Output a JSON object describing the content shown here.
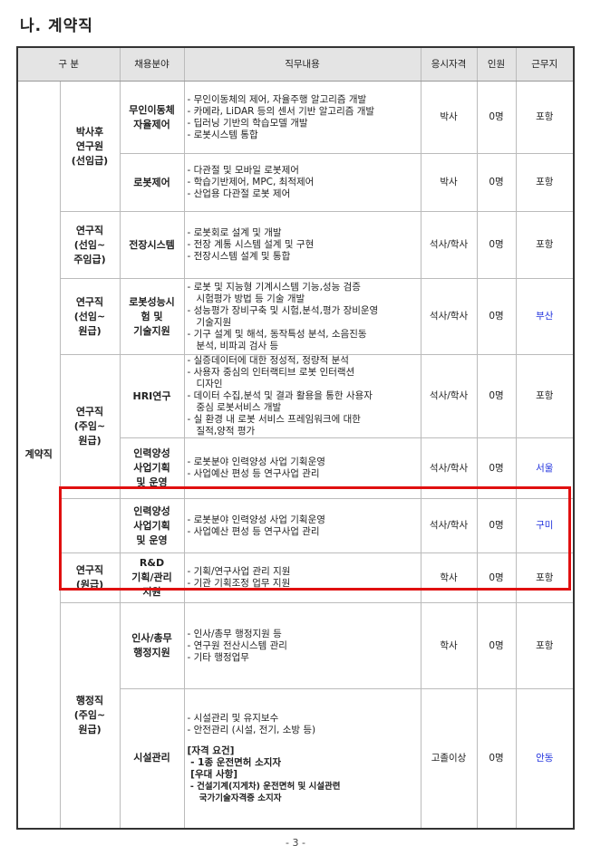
{
  "section_title": "나. 계약직",
  "headers": [
    "구 분",
    "채용분야",
    "직무내용",
    "응시자격",
    "인원",
    "근무지"
  ],
  "category": "계약직",
  "groups": {
    "g1": "박사후\n연구원\n(선임급)",
    "g2": "연구직\n(선임~\n주임급)",
    "g3": "연구직\n(선임~\n원급)",
    "g4": "연구직\n(주임~\n원급)",
    "g5": "연구직\n(원급)",
    "g6": "행정직\n(주임~\n원급)"
  },
  "rows": [
    {
      "field": "무인이동체\n자율제어",
      "duties": [
        "- 무인이동체의 제어, 자율주행 알고리즘 개발",
        "- 카메라, LiDAR 등의 센서 기반 알고리즘 개발",
        "- 딥러닝 기반의 학습모델 개발",
        "- 로봇시스템 통합"
      ],
      "qual": "박사",
      "count": "0명",
      "loc": "포항"
    },
    {
      "field": "로봇제어",
      "duties": [
        "- 다관절 및 모바일 로봇제어",
        "- 학습기반제어, MPC, 최적제어",
        "- 산업용 다관절 로봇 제어"
      ],
      "qual": "박사",
      "count": "0명",
      "loc": "포항"
    },
    {
      "field": "전장시스템",
      "duties": [
        "- 로봇회로 설계 및 개발",
        "- 전장 계통 시스템 설계 및 구현",
        "- 전장시스템 설계 및 통합"
      ],
      "qual": "석사/학사",
      "count": "0명",
      "loc": "포항"
    },
    {
      "field": "로봇성능시\n험 및\n기술지원",
      "duties": [
        "- 로봇 및 지능형 기계시스템 기능,성능 검증",
        "   시험평가 방법 등 기술 개발",
        "- 성능평가 장비구축 및 시험,분석,평가 장비운영",
        "   기술지원",
        "- 기구 설계 및 해석, 동작특성 분석, 소음진동",
        "   분석, 비파괴 검사 등"
      ],
      "qual": "석사/학사",
      "count": "0명",
      "loc": "부산"
    },
    {
      "field": "HRI연구",
      "duties": [
        "- 실증데이터에 대한 정성적, 정량적 분석",
        "- 사용자 중심의 인터랙티브 로봇 인터랙션",
        "   디자인",
        "- 데이터 수집,분석 및 결과 활용을 통한 사용자",
        "   중심 로봇서비스 개발",
        "- 실 환경 내 로봇 서비스 프레임워크에 대한",
        "   질적,양적 평가"
      ],
      "qual": "석사/학사",
      "count": "0명",
      "loc": "포항"
    },
    {
      "field": "인력양성\n사업기획\n및 운영",
      "duties": [
        "- 로봇분야 인력양성 사업 기획운영",
        "- 사업예산 편성 등 연구사업 관리"
      ],
      "qual": "석사/학사",
      "count": "0명",
      "loc": "서울"
    },
    {
      "field": "인력양성\n사업기획\n및 운영",
      "duties": [
        "- 로봇분야 인력양성 사업 기획운영",
        "- 사업예산 편성 등 연구사업 관리"
      ],
      "qual": "석사/학사",
      "count": "0명",
      "loc": "구미"
    },
    {
      "field": "R&D\n기획/관리\n지원",
      "duties": [
        "- 기획/연구사업 관리 지원",
        "- 기관 기획조정 업무 지원"
      ],
      "qual": "학사",
      "count": "0명",
      "loc": "포항"
    },
    {
      "field": "인사/총무\n행정지원",
      "duties": [
        "- 인사/총무 행정지원 등",
        "- 연구원 전산시스템 관리",
        "- 기타 행정업무"
      ],
      "qual": "학사",
      "count": "0명",
      "loc": "포항"
    },
    {
      "field": "시설관리",
      "duties": [
        "- 시설관리 및 유지보수",
        "- 안전관리 (시설, 전기, 소방 등)"
      ],
      "qual": "고졸이상",
      "count": "0명",
      "loc": "안동",
      "req_title": "[자격 요건]",
      "req": " - 1종 운전면허 소지자",
      "pref_title": " [우대 사항]",
      "pref": [
        " - 건설기계(지게차) 운전면허 및 시설관련",
        "    국가기술자격증 소지자"
      ]
    }
  ],
  "colors": {
    "highlight": "#e01010",
    "location_blue": "#2233dd"
  },
  "page_number": "- 3 -"
}
